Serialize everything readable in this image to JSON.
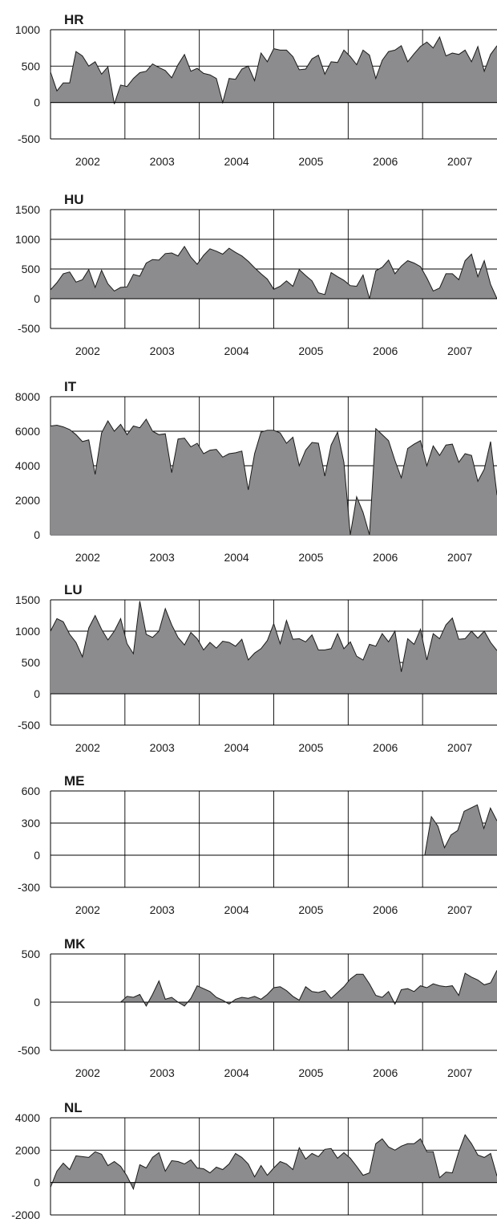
{
  "figure": {
    "fill_color": "#8c8c8e",
    "line_color": "#1a1a1a",
    "grid_color": "#000000"
  },
  "chart_data": [
    {
      "type": "area",
      "title": "HR",
      "ylim": [
        -500,
        1000
      ],
      "yticks": [
        "1000",
        "500",
        "0",
        "-500"
      ],
      "xticks": [
        "2002",
        "2003",
        "2004",
        "2005",
        "2006",
        "2007"
      ],
      "grid": true,
      "values": [
        420,
        160,
        270,
        270,
        700,
        640,
        500,
        560,
        390,
        490,
        -20,
        240,
        220,
        330,
        410,
        430,
        530,
        480,
        440,
        340,
        520,
        660,
        430,
        470,
        400,
        380,
        330,
        0,
        330,
        320,
        460,
        500,
        300,
        680,
        560,
        740,
        720,
        720,
        630,
        450,
        460,
        600,
        650,
        390,
        560,
        550,
        720,
        630,
        520,
        720,
        650,
        330,
        580,
        700,
        720,
        780,
        560,
        670,
        770,
        830,
        750,
        900,
        640,
        680,
        660,
        720,
        560,
        770,
        430,
        660,
        780
      ]
    },
    {
      "type": "area",
      "title": "HU",
      "ylim": [
        -500,
        1500
      ],
      "yticks": [
        "1500",
        "1000",
        "500",
        "0",
        "-500"
      ],
      "xticks": [
        "2002",
        "2003",
        "2004",
        "2005",
        "2006",
        "2007"
      ],
      "grid": true,
      "values": [
        150,
        270,
        420,
        450,
        280,
        320,
        490,
        190,
        480,
        250,
        130,
        190,
        200,
        410,
        380,
        600,
        660,
        650,
        760,
        770,
        720,
        880,
        700,
        580,
        730,
        840,
        800,
        750,
        850,
        780,
        720,
        630,
        520,
        420,
        330,
        160,
        210,
        300,
        210,
        490,
        390,
        300,
        100,
        70,
        440,
        370,
        310,
        220,
        210,
        400,
        0,
        470,
        530,
        650,
        420,
        550,
        640,
        600,
        540,
        350,
        130,
        180,
        420,
        420,
        320,
        640,
        750,
        370,
        640,
        240,
        0
      ]
    },
    {
      "type": "area",
      "title": "IT",
      "ylim": [
        0,
        8000
      ],
      "yticks": [
        "8000",
        "6000",
        "4000",
        "2000",
        "0"
      ],
      "xticks": [
        "2002",
        "2003",
        "2004",
        "2005",
        "2006",
        "2007"
      ],
      "grid": true,
      "values": [
        6300,
        6350,
        6250,
        6100,
        5800,
        5400,
        5500,
        3500,
        5900,
        6600,
        6000,
        6400,
        5800,
        6300,
        6200,
        6700,
        6000,
        5800,
        5850,
        3600,
        5550,
        5600,
        5100,
        5300,
        4700,
        4900,
        4950,
        4500,
        4700,
        4750,
        4850,
        2600,
        4700,
        5950,
        6050,
        6050,
        5900,
        5300,
        5650,
        4000,
        4900,
        5350,
        5300,
        3400,
        5200,
        5950,
        4200,
        0,
        2200,
        1300,
        0,
        6150,
        5800,
        5450,
        4300,
        3300,
        5000,
        5250,
        5450,
        4000,
        5150,
        4600,
        5200,
        5250,
        4200,
        4700,
        4600,
        3100,
        3800,
        5400,
        2300
      ]
    },
    {
      "type": "area",
      "title": "LU",
      "ylim": [
        -500,
        1500
      ],
      "yticks": [
        "1500",
        "1000",
        "500",
        "0",
        "-500"
      ],
      "xticks": [
        "2002",
        "2003",
        "2004",
        "2005",
        "2006",
        "2007"
      ],
      "grid": true,
      "values": [
        1000,
        1200,
        1150,
        950,
        820,
        590,
        1050,
        1250,
        1030,
        860,
        1000,
        1200,
        800,
        640,
        1480,
        950,
        900,
        1000,
        1360,
        1100,
        900,
        780,
        980,
        880,
        700,
        820,
        730,
        840,
        820,
        760,
        870,
        540,
        650,
        720,
        850,
        1120,
        800,
        1170,
        870,
        880,
        830,
        940,
        700,
        700,
        720,
        960,
        720,
        830,
        600,
        540,
        790,
        760,
        960,
        830,
        1000,
        350,
        880,
        790,
        1030,
        540,
        960,
        880,
        1100,
        1210,
        870,
        880,
        1000,
        890,
        1000,
        820,
        690
      ]
    },
    {
      "type": "area",
      "title": "ME",
      "ylim": [
        -300,
        600
      ],
      "yticks": [
        "600",
        "300",
        "0",
        "-300"
      ],
      "xticks": [
        "2002",
        "2003",
        "2004",
        "2005",
        "2006",
        "2007"
      ],
      "grid": true,
      "values": [
        null,
        null,
        null,
        null,
        null,
        null,
        null,
        null,
        null,
        null,
        null,
        null,
        null,
        null,
        null,
        null,
        null,
        null,
        null,
        null,
        null,
        null,
        null,
        null,
        null,
        null,
        null,
        null,
        null,
        null,
        null,
        null,
        null,
        null,
        null,
        null,
        null,
        null,
        null,
        null,
        null,
        null,
        null,
        null,
        null,
        null,
        null,
        null,
        null,
        null,
        null,
        null,
        null,
        null,
        null,
        null,
        null,
        0,
        360,
        270,
        70,
        190,
        230,
        410,
        440,
        470,
        250,
        440,
        320
      ]
    },
    {
      "type": "area",
      "title": "MK",
      "ylim": [
        -500,
        500
      ],
      "yticks": [
        "500",
        "0",
        "-500"
      ],
      "xticks": [
        "2002",
        "2003",
        "2004",
        "2005",
        "2006",
        "2007"
      ],
      "grid": true,
      "values": [
        null,
        null,
        null,
        null,
        null,
        null,
        null,
        null,
        null,
        null,
        null,
        0,
        60,
        50,
        80,
        -40,
        80,
        220,
        30,
        50,
        0,
        -40,
        40,
        170,
        140,
        110,
        50,
        20,
        -20,
        30,
        50,
        40,
        60,
        30,
        80,
        150,
        160,
        120,
        60,
        20,
        160,
        110,
        100,
        120,
        40,
        100,
        160,
        240,
        290,
        290,
        190,
        70,
        50,
        110,
        -20,
        130,
        140,
        110,
        170,
        150,
        190,
        170,
        160,
        170,
        70,
        300,
        260,
        230,
        180,
        200,
        330
      ]
    },
    {
      "type": "area",
      "title": "NL",
      "ylim": [
        -2000,
        4000
      ],
      "yticks": [
        "4000",
        "2000",
        "0",
        "-2000"
      ],
      "xticks": [
        "2002",
        "2003",
        "2004",
        "2005",
        "2006",
        "2007"
      ],
      "grid": true,
      "values": [
        -300,
        700,
        1200,
        800,
        1650,
        1600,
        1550,
        1900,
        1750,
        1050,
        1300,
        1000,
        400,
        -400,
        1100,
        900,
        1550,
        1850,
        700,
        1350,
        1300,
        1150,
        1400,
        900,
        850,
        600,
        950,
        800,
        1150,
        1800,
        1550,
        1150,
        350,
        1050,
        450,
        900,
        1300,
        1150,
        800,
        2150,
        1450,
        1800,
        1600,
        2050,
        2100,
        1500,
        1850,
        1500,
        1000,
        450,
        600,
        2400,
        2700,
        2200,
        2000,
        2250,
        2400,
        2400,
        2700,
        1900,
        1900,
        300,
        650,
        600,
        1900,
        2950,
        2400,
        1700,
        1550,
        1800,
        400
      ]
    }
  ]
}
